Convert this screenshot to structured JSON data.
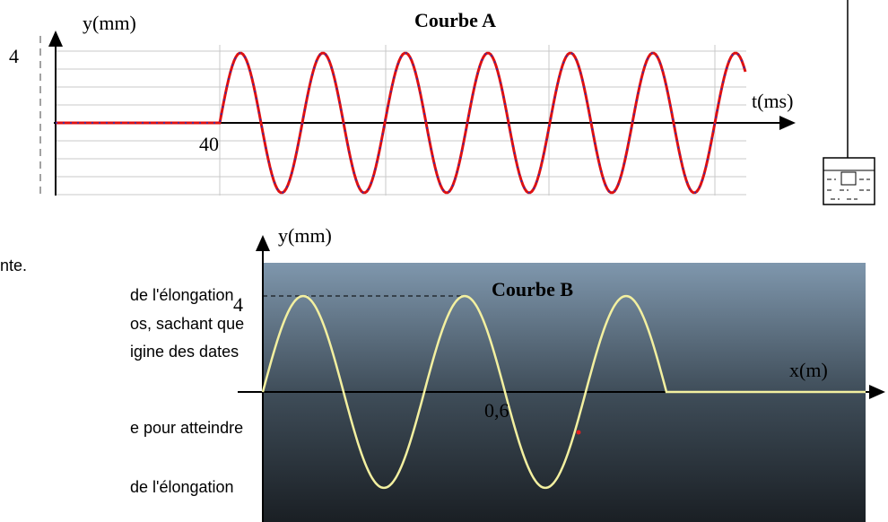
{
  "curve_a": {
    "y_label": "y(mm)",
    "title": "Courbe A",
    "y_mark": "4",
    "x_label": "t(ms)",
    "x_mark": "40"
  },
  "curve_b": {
    "y_label": "y(mm)",
    "title": "Courbe B",
    "y_mark": "4",
    "x_label": "x(m)",
    "x_mark": "0,6"
  },
  "text_fragments": [
    "nte.",
    "de l'élongation",
    "os, sachant que",
    "igine des dates",
    "e pour atteindre",
    "de l'élongation"
  ]
}
